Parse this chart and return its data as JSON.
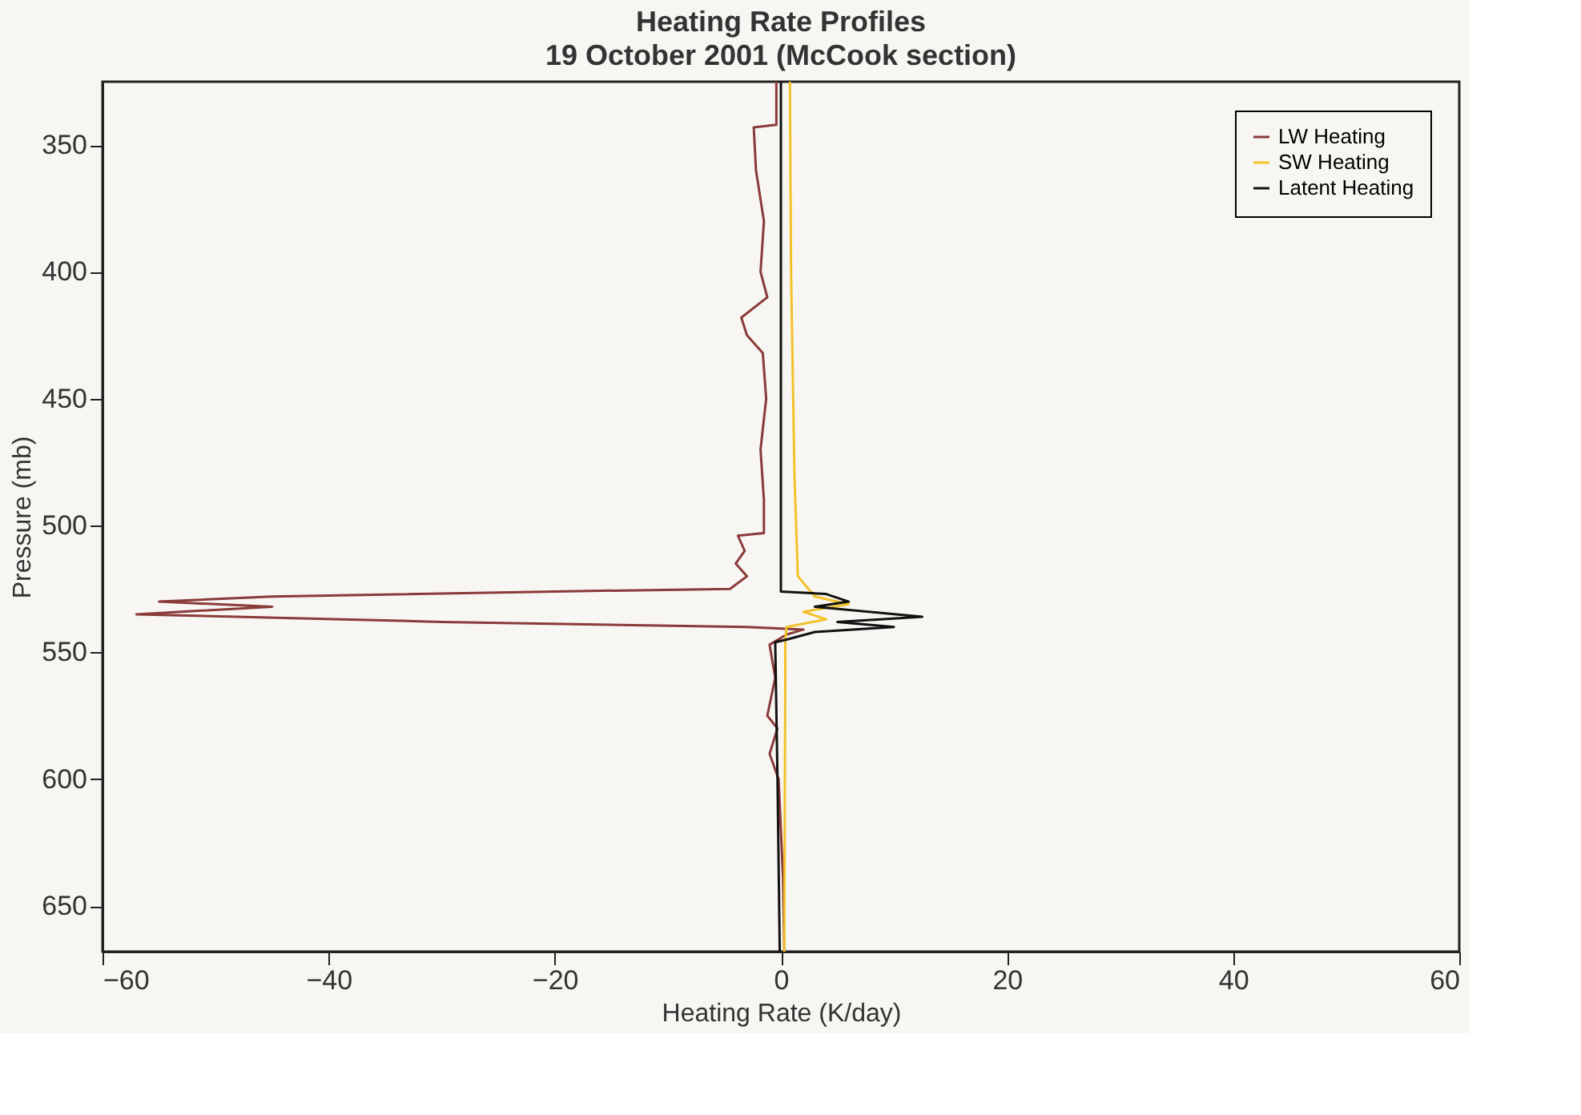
{
  "chart_data": {
    "type": "line",
    "title": "Heating Rate Profiles",
    "subtitle": "19 October 2001 (McCook section)",
    "xlabel": "Heating Rate (K/day)",
    "ylabel": "Pressure (mb)",
    "xlim": [
      -60,
      60
    ],
    "xticks": [
      -60,
      -40,
      -20,
      0,
      20,
      40,
      60
    ],
    "ylim": [
      668,
      325
    ],
    "yticks": [
      350,
      400,
      450,
      500,
      550,
      600,
      650
    ],
    "grid": false,
    "legend": "top right",
    "line_style": "solid",
    "marker": "none",
    "series": [
      {
        "name": "LW Heating",
        "color": "#8a3a3a",
        "x": [
          -0.4,
          -0.4,
          -2.4,
          -2.2,
          -1.5,
          -1.8,
          -1.2,
          -3.5,
          -3.0,
          -1.6,
          -1.3,
          -1.8,
          -1.5,
          -1.5,
          -3.8,
          -3.2,
          -4.0,
          -3.0,
          -4.5,
          -20,
          -45,
          -55,
          -45,
          -57,
          -30,
          -3,
          2,
          0.5,
          -1,
          -0.5,
          -1.2,
          -0.3,
          -1.0,
          -0.2,
          0.2,
          0.3
        ],
        "values": [
          325,
          342,
          343,
          360,
          380,
          400,
          410,
          418,
          425,
          432,
          450,
          470,
          490,
          503,
          504,
          510,
          515,
          520,
          525,
          526,
          528,
          530,
          532,
          535,
          538,
          540,
          541,
          543,
          547,
          560,
          575,
          580,
          590,
          600,
          640,
          668
        ]
      },
      {
        "name": "SW Heating",
        "color": "#f2c22a",
        "x": [
          0.8,
          0.9,
          1.2,
          1.5,
          3,
          6,
          2,
          4,
          0.5,
          0.4,
          0.3
        ],
        "values": [
          325,
          400,
          480,
          520,
          528,
          531,
          534,
          537,
          540,
          545,
          668
        ]
      },
      {
        "name": "Latent Heating",
        "color": "#111111",
        "x": [
          0,
          0,
          4,
          6,
          3,
          12.5,
          5,
          10,
          3,
          0.5,
          -0.5,
          -0.3,
          -0.1
        ],
        "values": [
          325,
          526,
          527,
          530,
          532,
          536,
          538,
          540,
          542,
          545,
          546,
          600,
          668
        ]
      }
    ]
  }
}
